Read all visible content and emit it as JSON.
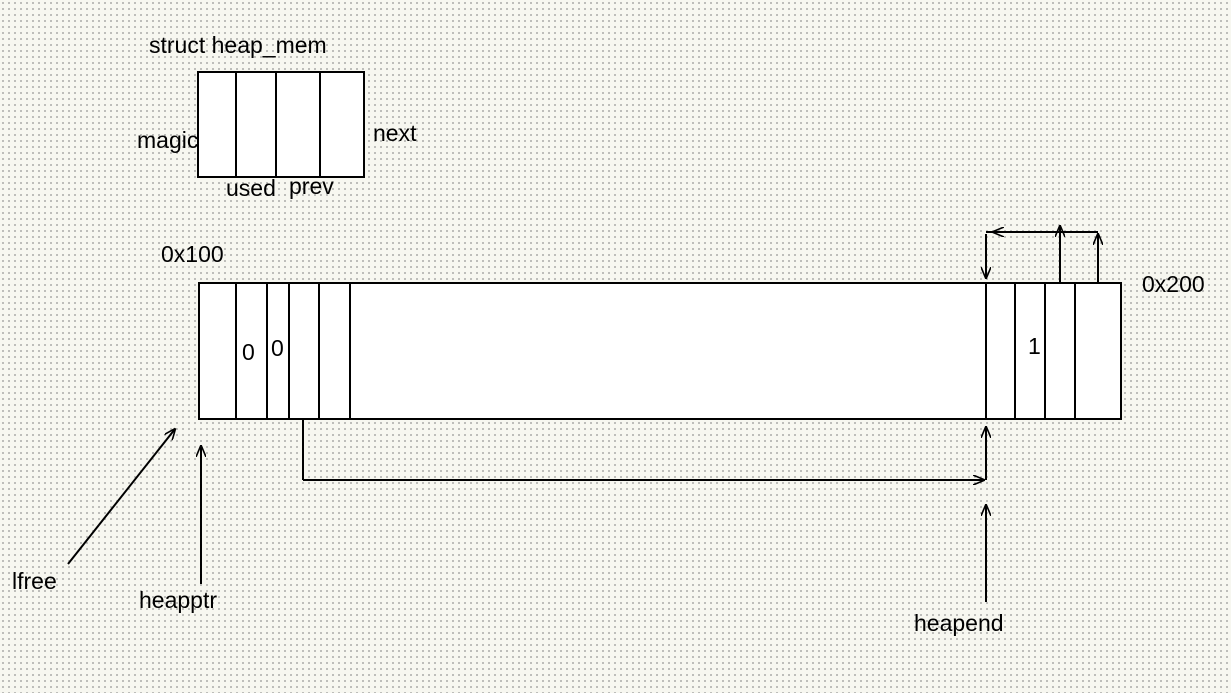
{
  "struct_diagram": {
    "title": "struct heap_mem",
    "fields": {
      "magic": "magic",
      "used": "used",
      "prev": "prev",
      "next": "next"
    }
  },
  "heap": {
    "start_address": "0x100",
    "end_address": "0x200",
    "first_block": {
      "used_value": "0",
      "prev_value": "0"
    },
    "end_block": {
      "used_value": "1"
    }
  },
  "pointers": {
    "lfree": "lfree",
    "heapptr": "heapptr",
    "heapend": "heapend"
  }
}
